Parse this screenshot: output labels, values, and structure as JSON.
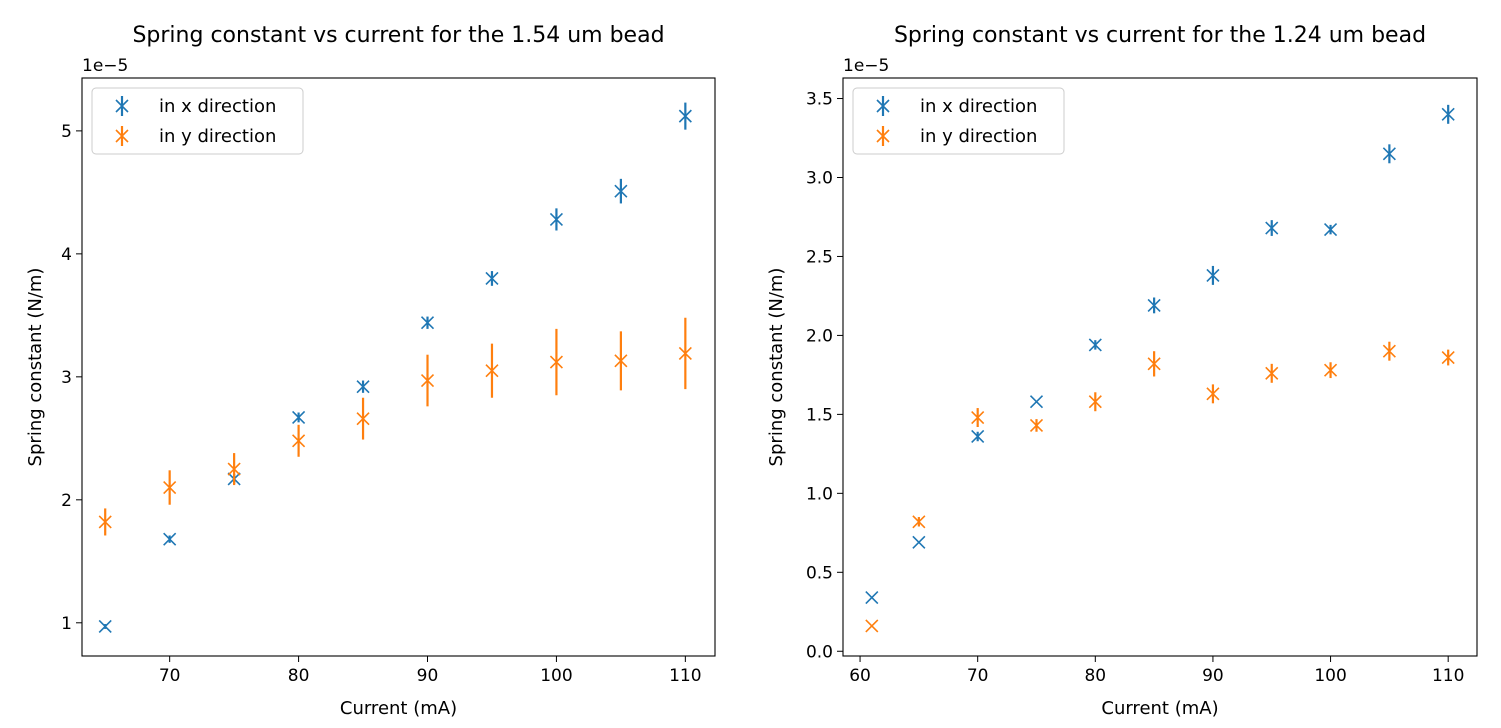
{
  "chart_data": [
    {
      "type": "scatter",
      "title": "Spring constant vs current for the 1.54 um bead",
      "xlabel": "Current (mA)",
      "ylabel": "Spring constant (N/m)",
      "offset_text": "1e−5",
      "xlim": [
        63.2,
        112.3
      ],
      "ylim": [
        0.73,
        5.43
      ],
      "xticks": [
        70,
        80,
        90,
        100,
        110
      ],
      "yticks": [
        1,
        2,
        3,
        4,
        5
      ],
      "grid": false,
      "legend": "top-left",
      "series": [
        {
          "name": "in x direction",
          "color": "#1f77b4",
          "points": [
            {
              "x": 65,
              "y": 0.97,
              "err": 0.02
            },
            {
              "x": 70,
              "y": 1.68,
              "err": 0.03
            },
            {
              "x": 75,
              "y": 2.17,
              "err": 0.04
            },
            {
              "x": 80,
              "y": 2.67,
              "err": 0.04
            },
            {
              "x": 85,
              "y": 2.92,
              "err": 0.05
            },
            {
              "x": 90,
              "y": 3.44,
              "err": 0.05
            },
            {
              "x": 95,
              "y": 3.8,
              "err": 0.06
            },
            {
              "x": 100,
              "y": 4.28,
              "err": 0.09
            },
            {
              "x": 105,
              "y": 4.51,
              "err": 0.1
            },
            {
              "x": 110,
              "y": 5.12,
              "err": 0.11
            }
          ]
        },
        {
          "name": "in y direction",
          "color": "#ff7f0e",
          "points": [
            {
              "x": 65,
              "y": 1.82,
              "err": 0.11
            },
            {
              "x": 70,
              "y": 2.1,
              "err": 0.14
            },
            {
              "x": 75,
              "y": 2.25,
              "err": 0.13
            },
            {
              "x": 80,
              "y": 2.48,
              "err": 0.13
            },
            {
              "x": 85,
              "y": 2.66,
              "err": 0.17
            },
            {
              "x": 90,
              "y": 2.97,
              "err": 0.21
            },
            {
              "x": 95,
              "y": 3.05,
              "err": 0.22
            },
            {
              "x": 100,
              "y": 3.12,
              "err": 0.27
            },
            {
              "x": 105,
              "y": 3.13,
              "err": 0.24
            },
            {
              "x": 110,
              "y": 3.19,
              "err": 0.29
            }
          ]
        }
      ]
    },
    {
      "type": "scatter",
      "title": "Spring constant vs current for the 1.24 um bead",
      "xlabel": "Current (mA)",
      "ylabel": "Spring constant (N/m)",
      "offset_text": "1e−5",
      "xlim": [
        58.55,
        112.45
      ],
      "ylim": [
        -0.03,
        3.63
      ],
      "xticks": [
        60,
        70,
        80,
        90,
        100,
        110
      ],
      "yticks": [
        0.0,
        0.5,
        1.0,
        1.5,
        2.0,
        2.5,
        3.0,
        3.5
      ],
      "ytick_labels": [
        "0.0",
        "0.5",
        "1.0",
        "1.5",
        "2.0",
        "2.5",
        "3.0",
        "3.5"
      ],
      "grid": false,
      "legend": "top-left",
      "series": [
        {
          "name": "in x direction",
          "color": "#1f77b4",
          "points": [
            {
              "x": 61,
              "y": 0.34,
              "err": 0.0
            },
            {
              "x": 65,
              "y": 0.69,
              "err": 0.0
            },
            {
              "x": 70,
              "y": 1.36,
              "err": 0.03
            },
            {
              "x": 75,
              "y": 1.58,
              "err": 0.0
            },
            {
              "x": 80,
              "y": 1.94,
              "err": 0.03
            },
            {
              "x": 85,
              "y": 2.19,
              "err": 0.05
            },
            {
              "x": 90,
              "y": 2.38,
              "err": 0.06
            },
            {
              "x": 95,
              "y": 2.68,
              "err": 0.05
            },
            {
              "x": 100,
              "y": 2.67,
              "err": 0.03
            },
            {
              "x": 105,
              "y": 3.15,
              "err": 0.06
            },
            {
              "x": 110,
              "y": 3.4,
              "err": 0.06
            }
          ]
        },
        {
          "name": "in y direction",
          "color": "#ff7f0e",
          "points": [
            {
              "x": 61,
              "y": 0.16,
              "err": 0.0
            },
            {
              "x": 65,
              "y": 0.82,
              "err": 0.03
            },
            {
              "x": 70,
              "y": 1.48,
              "err": 0.06
            },
            {
              "x": 75,
              "y": 1.43,
              "err": 0.04
            },
            {
              "x": 80,
              "y": 1.58,
              "err": 0.06
            },
            {
              "x": 85,
              "y": 1.82,
              "err": 0.08
            },
            {
              "x": 90,
              "y": 1.63,
              "err": 0.06
            },
            {
              "x": 95,
              "y": 1.76,
              "err": 0.06
            },
            {
              "x": 100,
              "y": 1.78,
              "err": 0.05
            },
            {
              "x": 105,
              "y": 1.9,
              "err": 0.06
            },
            {
              "x": 110,
              "y": 1.86,
              "err": 0.05
            }
          ]
        }
      ]
    }
  ]
}
